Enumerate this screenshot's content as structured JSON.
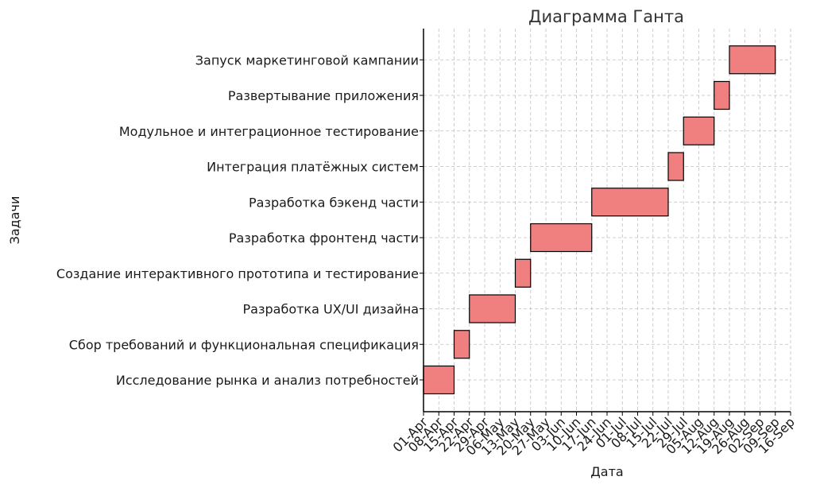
{
  "chart_data": {
    "type": "gantt",
    "title": "Диаграмма Ганта",
    "xlabel": "Дата",
    "ylabel": "Задачи",
    "grid": true,
    "bar_color": "#f08080",
    "edge_color": "#000000",
    "date_range": [
      "2024-04-01",
      "2024-09-16"
    ],
    "x_ticks": [
      {
        "date": "2024-04-01",
        "label": "01-Apr"
      },
      {
        "date": "2024-04-08",
        "label": "08-Apr"
      },
      {
        "date": "2024-04-15",
        "label": "15-Apr"
      },
      {
        "date": "2024-04-22",
        "label": "22-Apr"
      },
      {
        "date": "2024-04-29",
        "label": "29-Apr"
      },
      {
        "date": "2024-05-06",
        "label": "06-May"
      },
      {
        "date": "2024-05-13",
        "label": "13-May"
      },
      {
        "date": "2024-05-20",
        "label": "20-May"
      },
      {
        "date": "2024-05-27",
        "label": "27-May"
      },
      {
        "date": "2024-06-03",
        "label": "03-Jun"
      },
      {
        "date": "2024-06-10",
        "label": "10-Jun"
      },
      {
        "date": "2024-06-17",
        "label": "17-Jun"
      },
      {
        "date": "2024-06-24",
        "label": "24-Jun"
      },
      {
        "date": "2024-07-01",
        "label": "01-Jul"
      },
      {
        "date": "2024-07-08",
        "label": "08-Jul"
      },
      {
        "date": "2024-07-15",
        "label": "15-Jul"
      },
      {
        "date": "2024-07-22",
        "label": "22-Jul"
      },
      {
        "date": "2024-07-29",
        "label": "29-Jul"
      },
      {
        "date": "2024-08-05",
        "label": "05-Aug"
      },
      {
        "date": "2024-08-12",
        "label": "12-Aug"
      },
      {
        "date": "2024-08-19",
        "label": "19-Aug"
      },
      {
        "date": "2024-08-26",
        "label": "26-Aug"
      },
      {
        "date": "2024-09-02",
        "label": "02-Sep"
      },
      {
        "date": "2024-09-09",
        "label": "09-Sep"
      },
      {
        "date": "2024-09-16",
        "label": "16-Sep"
      }
    ],
    "tasks": [
      {
        "name": "Исследование рынка и анализ потребностей",
        "start": "2024-04-01",
        "end": "2024-04-15"
      },
      {
        "name": "Сбор требований и функциональная спецификация",
        "start": "2024-04-15",
        "end": "2024-04-22"
      },
      {
        "name": "Разработка UX/UI дизайна",
        "start": "2024-04-22",
        "end": "2024-05-13"
      },
      {
        "name": "Создание интерактивного прототипа и тестирование",
        "start": "2024-05-13",
        "end": "2024-05-20"
      },
      {
        "name": "Разработка фронтенд части",
        "start": "2024-05-20",
        "end": "2024-06-17"
      },
      {
        "name": "Разработка бэкенд части",
        "start": "2024-06-17",
        "end": "2024-07-22"
      },
      {
        "name": "Интеграция платёжных систем",
        "start": "2024-07-22",
        "end": "2024-07-29"
      },
      {
        "name": "Модульное и интеграционное тестирование",
        "start": "2024-07-29",
        "end": "2024-08-12"
      },
      {
        "name": "Развертывание приложения",
        "start": "2024-08-12",
        "end": "2024-08-19"
      },
      {
        "name": "Запуск маркетинговой кампании",
        "start": "2024-08-19",
        "end": "2024-09-09"
      }
    ]
  }
}
